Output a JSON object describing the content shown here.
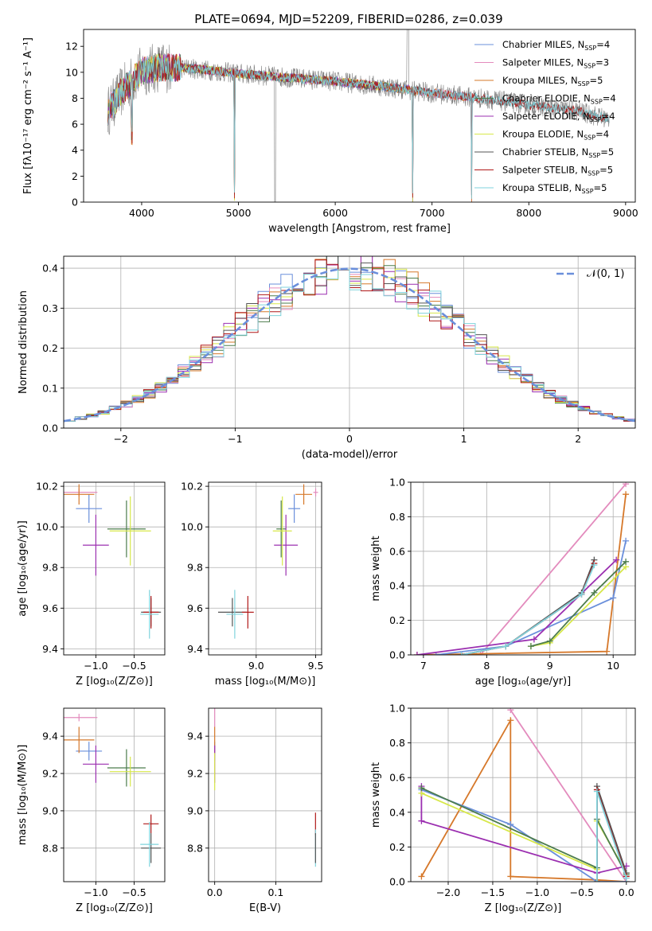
{
  "colors": {
    "chabrier_miles": "#6a8fdb",
    "salpeter_miles": "#e38bbd",
    "kroupa_miles": "#d6782a",
    "chabrier_elodie": "#4d7d4d",
    "salpeter_elodie": "#9b2fb0",
    "kroupa_elodie": "#d7e84a",
    "chabrier_stelib": "#555555",
    "salpeter_stelib": "#b01818",
    "kroupa_stelib": "#7fd3dc",
    "normal": "#6a8fdb",
    "data": "#7f7f7f"
  },
  "chart_data": [
    {
      "type": "line",
      "title": "PLATE=0694, MJD=52209, FIBERID=0286, z=0.039",
      "xlabel": "wavelength [Angstrom, rest frame]",
      "ylabel": "Flux [fλ10⁻¹⁷ erg cm⁻² s⁻¹ A⁻¹]",
      "xlim": [
        3400,
        9100
      ],
      "ylim": [
        0,
        13.3
      ],
      "xticks": [
        4000,
        5000,
        6000,
        7000,
        8000,
        9000
      ],
      "yticks": [
        0,
        2,
        4,
        6,
        8,
        10,
        12
      ],
      "legend_position": "upper right",
      "legend": [
        {
          "key": "chabrier_miles",
          "label": "Chabrier MILES, N",
          "sub": "SSP",
          "suffix": "=4"
        },
        {
          "key": "salpeter_miles",
          "label": "Salpeter MILES, N",
          "sub": "SSP",
          "suffix": "=3"
        },
        {
          "key": "kroupa_miles",
          "label": "Kroupa MILES, N",
          "sub": "SSP",
          "suffix": "=5"
        },
        {
          "key": "chabrier_elodie",
          "label": "Chabrier ELODIE, N",
          "sub": "SSP",
          "suffix": "=4"
        },
        {
          "key": "salpeter_elodie",
          "label": "Salpeter ELODIE, N",
          "sub": "SSP",
          "suffix": "=4"
        },
        {
          "key": "kroupa_elodie",
          "label": "Kroupa ELODIE, N",
          "sub": "SSP",
          "suffix": "=4"
        },
        {
          "key": "chabrier_stelib",
          "label": "Chabrier STELIB, N",
          "sub": "SSP",
          "suffix": "=5"
        },
        {
          "key": "salpeter_stelib",
          "label": "Salpeter STELIB, N",
          "sub": "SSP",
          "suffix": "=5"
        },
        {
          "key": "kroupa_stelib",
          "label": "Kroupa STELIB, N",
          "sub": "SSP",
          "suffix": "=5"
        }
      ],
      "continuum": {
        "x": [
          3650,
          3800,
          4000,
          4200,
          4500,
          5000,
          5500,
          6000,
          6500,
          7000,
          7500,
          8000,
          8500,
          8830
        ],
        "y": [
          7.0,
          8.6,
          10.1,
          10.4,
          10.3,
          9.9,
          9.6,
          9.3,
          8.9,
          8.4,
          8.0,
          7.5,
          7.0,
          6.4
        ]
      },
      "series_ranges": {
        "chabrier_miles": [
          3650,
          7410
        ],
        "salpeter_miles": [
          3650,
          7410
        ],
        "kroupa_miles": [
          3650,
          7410
        ],
        "chabrier_elodie": [
          3650,
          6800
        ],
        "salpeter_elodie": [
          3650,
          6800
        ],
        "kroupa_elodie": [
          3650,
          6800
        ],
        "chabrier_stelib": [
          3650,
          8830
        ],
        "salpeter_stelib": [
          3650,
          8830
        ],
        "kroupa_stelib": [
          3650,
          8830
        ]
      },
      "dips": [
        {
          "x": 3900,
          "depth": 4.0
        },
        {
          "x": 4960,
          "depth": 9.5
        },
        {
          "x": 6800,
          "depth": 8.0
        },
        {
          "x": 7410,
          "depth": 7.5
        }
      ]
    },
    {
      "type": "step",
      "xlabel": "(data-model)/error",
      "ylabel": "Normed distribution",
      "xlim": [
        -2.5,
        2.5
      ],
      "ylim": [
        0,
        0.43
      ],
      "xticks": [
        -2,
        -1,
        0,
        1,
        2
      ],
      "yticks": [
        0.0,
        0.1,
        0.2,
        0.3,
        0.4
      ],
      "legend_position": "upper right",
      "legend": [
        {
          "label": "𝒩(0, 1)",
          "key": "normal"
        }
      ],
      "bin_width": 0.1,
      "model": "normal",
      "mean": 0,
      "sigma": 1
    },
    {
      "type": "errorbar",
      "xlabel": "Z [log₁₀(Z/Z⊙)]",
      "ylabel": "age  [log₁₀(age/yr)]",
      "xlim": [
        -1.42,
        -0.1
      ],
      "ylim": [
        9.37,
        10.22
      ],
      "xticks": [
        -1.0,
        -0.5
      ],
      "yticks": [
        9.4,
        9.6,
        9.8,
        10.0,
        10.2
      ],
      "points": [
        {
          "key": "chabrier_miles",
          "x": -1.09,
          "xerr": 0.17,
          "y": 10.09,
          "yerr": 0.07
        },
        {
          "key": "salpeter_miles",
          "x": -1.22,
          "xerr": 0.24,
          "y": 10.17,
          "yerr": 0.02
        },
        {
          "key": "kroupa_miles",
          "x": -1.22,
          "xerr": 0.2,
          "y": 10.16,
          "yerr": 0.05
        },
        {
          "key": "chabrier_elodie",
          "x": -0.6,
          "xerr": 0.25,
          "y": 9.99,
          "yerr": 0.14
        },
        {
          "key": "salpeter_elodie",
          "x": -1.0,
          "xerr": 0.17,
          "y": 9.91,
          "yerr": 0.15
        },
        {
          "key": "kroupa_elodie",
          "x": -0.55,
          "xerr": 0.27,
          "y": 9.98,
          "yerr": 0.17
        },
        {
          "key": "chabrier_stelib",
          "x": -0.28,
          "xerr": 0.13,
          "y": 9.58,
          "yerr": 0.07
        },
        {
          "key": "salpeter_stelib",
          "x": -0.28,
          "xerr": 0.1,
          "y": 9.58,
          "yerr": 0.08
        },
        {
          "key": "kroupa_stelib",
          "x": -0.3,
          "xerr": 0.12,
          "y": 9.57,
          "yerr": 0.12
        }
      ]
    },
    {
      "type": "errorbar",
      "xlabel": "mass [log₁₀(M/M⊙)]",
      "xlim": [
        8.6,
        9.55
      ],
      "ylim": [
        9.37,
        10.22
      ],
      "xticks": [
        9.0,
        9.5
      ],
      "yticks": [
        9.4,
        9.6,
        9.8,
        10.0,
        10.2
      ],
      "points": [
        {
          "key": "chabrier_miles",
          "x": 9.32,
          "xerr": 0.05,
          "y": 10.09,
          "yerr": 0.07
        },
        {
          "key": "salpeter_miles",
          "x": 9.5,
          "xerr": 0.02,
          "y": 10.17,
          "yerr": 0.02
        },
        {
          "key": "kroupa_miles",
          "x": 9.4,
          "xerr": 0.07,
          "y": 10.16,
          "yerr": 0.05
        },
        {
          "key": "chabrier_elodie",
          "x": 9.21,
          "xerr": 0.04,
          "y": 9.99,
          "yerr": 0.14
        },
        {
          "key": "salpeter_elodie",
          "x": 9.25,
          "xerr": 0.1,
          "y": 9.91,
          "yerr": 0.15
        },
        {
          "key": "kroupa_elodie",
          "x": 9.22,
          "xerr": 0.08,
          "y": 9.98,
          "yerr": 0.17
        },
        {
          "key": "chabrier_stelib",
          "x": 8.8,
          "xerr": 0.12,
          "y": 9.58,
          "yerr": 0.07
        },
        {
          "key": "salpeter_stelib",
          "x": 8.93,
          "xerr": 0.05,
          "y": 9.58,
          "yerr": 0.08
        },
        {
          "key": "kroupa_stelib",
          "x": 8.82,
          "xerr": 0.07,
          "y": 9.57,
          "yerr": 0.12
        }
      ]
    },
    {
      "type": "line",
      "xlabel": "age  [log₁₀(age/yr)]",
      "ylabel": "mass weight",
      "xlim": [
        6.8,
        10.35
      ],
      "ylim": [
        0,
        1.0
      ],
      "xticks": [
        7,
        8,
        9,
        10
      ],
      "yticks": [
        0.0,
        0.2,
        0.4,
        0.6,
        0.8,
        1.0
      ],
      "series": [
        {
          "key": "salpeter_miles",
          "x": [
            7.9,
            10.2
          ],
          "y": [
            0.0,
            0.99
          ]
        },
        {
          "key": "kroupa_miles",
          "x": [
            6.9,
            9.9,
            10.2
          ],
          "y": [
            0.0,
            0.02,
            0.93
          ]
        },
        {
          "key": "chabrier_miles",
          "x": [
            7.2,
            8.3,
            10.0,
            10.2
          ],
          "y": [
            0.0,
            0.05,
            0.33,
            0.66
          ]
        },
        {
          "key": "salpeter_elodie",
          "x": [
            6.9,
            8.75,
            10.05
          ],
          "y": [
            0.0,
            0.09,
            0.55
          ]
        },
        {
          "key": "kroupa_elodie",
          "x": [
            8.7,
            9.0,
            10.2
          ],
          "y": [
            0.05,
            0.07,
            0.51
          ]
        },
        {
          "key": "chabrier_elodie",
          "x": [
            8.7,
            9.0,
            9.7,
            10.2
          ],
          "y": [
            0.05,
            0.08,
            0.36,
            0.54
          ]
        },
        {
          "key": "chabrier_stelib",
          "x": [
            7.6,
            8.3,
            9.5,
            9.7
          ],
          "y": [
            0.0,
            0.05,
            0.36,
            0.55
          ]
        },
        {
          "key": "salpeter_stelib",
          "x": [
            7.6,
            8.3,
            9.5,
            9.7
          ],
          "y": [
            0.0,
            0.05,
            0.35,
            0.53
          ]
        },
        {
          "key": "kroupa_stelib",
          "x": [
            7.6,
            8.3,
            9.5,
            9.7
          ],
          "y": [
            0.0,
            0.05,
            0.35,
            0.52
          ]
        }
      ]
    },
    {
      "type": "errorbar",
      "xlabel": "Z [log₁₀(Z/Z⊙)]",
      "ylabel": "mass [log₁₀(M/M⊙)]",
      "xlim": [
        -1.42,
        -0.1
      ],
      "ylim": [
        8.62,
        9.55
      ],
      "xticks": [
        -1.0,
        -0.5
      ],
      "yticks": [
        8.8,
        9.0,
        9.2,
        9.4
      ],
      "points": [
        {
          "key": "chabrier_miles",
          "x": -1.09,
          "xerr": 0.17,
          "y": 9.32,
          "yerr": 0.05
        },
        {
          "key": "salpeter_miles",
          "x": -1.22,
          "xerr": 0.24,
          "y": 9.5,
          "yerr": 0.02
        },
        {
          "key": "kroupa_miles",
          "x": -1.22,
          "xerr": 0.2,
          "y": 9.38,
          "yerr": 0.07
        },
        {
          "key": "chabrier_elodie",
          "x": -0.6,
          "xerr": 0.25,
          "y": 9.23,
          "yerr": 0.1
        },
        {
          "key": "salpeter_elodie",
          "x": -1.0,
          "xerr": 0.17,
          "y": 9.25,
          "yerr": 0.1
        },
        {
          "key": "kroupa_elodie",
          "x": -0.55,
          "xerr": 0.27,
          "y": 9.21,
          "yerr": 0.08
        },
        {
          "key": "chabrier_stelib",
          "x": -0.28,
          "xerr": 0.13,
          "y": 8.8,
          "yerr": 0.08
        },
        {
          "key": "salpeter_stelib",
          "x": -0.28,
          "xerr": 0.1,
          "y": 8.93,
          "yerr": 0.05
        },
        {
          "key": "kroupa_stelib",
          "x": -0.3,
          "xerr": 0.12,
          "y": 8.82,
          "yerr": 0.12
        }
      ]
    },
    {
      "type": "errorbar",
      "xlabel": "E(B-V)",
      "xlim": [
        -0.01,
        0.175
      ],
      "ylim": [
        8.62,
        9.55
      ],
      "xticks": [
        0.0,
        0.1
      ],
      "yticks": [
        8.8,
        9.0,
        9.2,
        9.4
      ],
      "points": [
        {
          "key": "chabrier_miles",
          "x": 0.0,
          "xerr": 0.0,
          "y": 9.32,
          "yerr": 0.05
        },
        {
          "key": "salpeter_miles",
          "x": 0.0,
          "xerr": 0.0,
          "y": 9.5,
          "yerr": 0.05
        },
        {
          "key": "kroupa_miles",
          "x": 0.0,
          "xerr": 0.0,
          "y": 9.38,
          "yerr": 0.07
        },
        {
          "key": "salpeter_elodie",
          "x": 0.0,
          "xerr": 0.0,
          "y": 9.25,
          "yerr": 0.1
        },
        {
          "key": "kroupa_elodie",
          "x": 0.0,
          "xerr": 0.0,
          "y": 9.21,
          "yerr": 0.1
        },
        {
          "key": "salpeter_stelib",
          "x": 0.165,
          "xerr": 0.0,
          "y": 8.93,
          "yerr": 0.06
        },
        {
          "key": "kroupa_stelib",
          "x": 0.165,
          "xerr": 0.0,
          "y": 8.8,
          "yerr": 0.1
        },
        {
          "key": "chabrier_stelib",
          "x": 0.165,
          "xerr": 0.0,
          "y": 8.8,
          "yerr": 0.08
        }
      ]
    },
    {
      "type": "line",
      "xlabel": "Z [log₁₀(Z/Z⊙)]",
      "ylabel": "mass weight",
      "xlim": [
        -2.42,
        0.1
      ],
      "ylim": [
        0,
        1.0
      ],
      "xticks": [
        -2.0,
        -1.5,
        -1.0,
        -0.5,
        0.0
      ],
      "yticks": [
        0.0,
        0.2,
        0.4,
        0.6,
        0.8,
        1.0
      ],
      "series": [
        {
          "key": "salpeter_miles",
          "x": [
            -1.3,
            0.0
          ],
          "y": [
            0.99,
            0.0
          ]
        },
        {
          "key": "kroupa_miles",
          "x": [
            -2.3,
            -1.3,
            -1.3,
            -0.33,
            0.0
          ],
          "y": [
            0.03,
            0.93,
            0.03,
            0.01,
            0.0
          ]
        },
        {
          "key": "chabrier_miles",
          "x": [
            -2.3,
            -1.3,
            -0.33,
            0.0
          ],
          "y": [
            0.53,
            0.33,
            0.0,
            0.0
          ]
        },
        {
          "key": "salpeter_elodie",
          "x": [
            -2.3,
            -2.3,
            -0.33,
            0.0
          ],
          "y": [
            0.55,
            0.35,
            0.05,
            0.09
          ]
        },
        {
          "key": "kroupa_elodie",
          "x": [
            -2.3,
            -0.33,
            -0.33,
            0.0
          ],
          "y": [
            0.51,
            0.07,
            0.35,
            0.05
          ]
        },
        {
          "key": "chabrier_elodie",
          "x": [
            -2.3,
            -0.33,
            -0.33,
            0.0
          ],
          "y": [
            0.54,
            0.08,
            0.36,
            0.04
          ]
        },
        {
          "key": "chabrier_stelib",
          "x": [
            -0.33,
            -0.33,
            0.0
          ],
          "y": [
            0.0,
            0.55,
            0.05
          ]
        },
        {
          "key": "salpeter_stelib",
          "x": [
            -0.33,
            -0.33,
            0.0
          ],
          "y": [
            0.0,
            0.53,
            0.03
          ]
        },
        {
          "key": "kroupa_stelib",
          "x": [
            -0.33,
            -0.33,
            0.0
          ],
          "y": [
            0.0,
            0.52,
            0.02
          ]
        }
      ]
    }
  ]
}
